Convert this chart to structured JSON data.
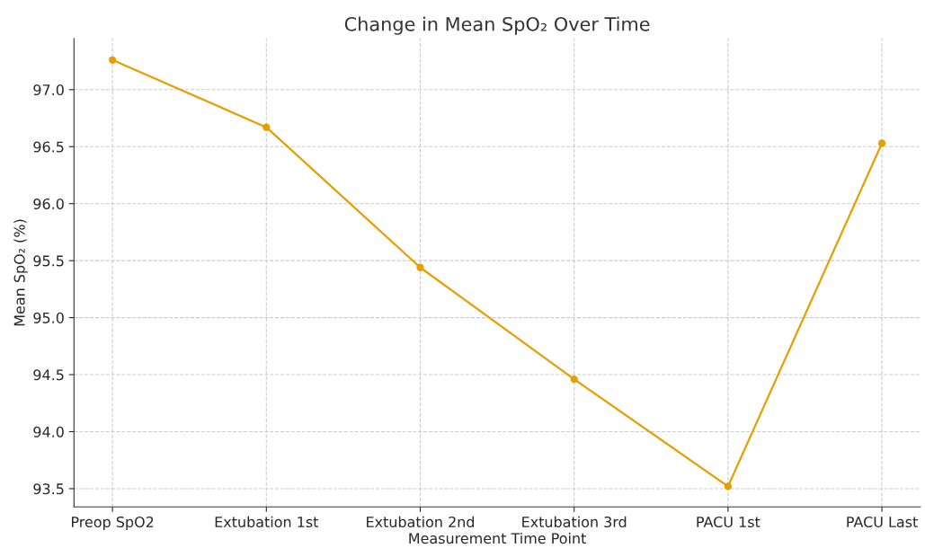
{
  "chart_data": {
    "type": "line",
    "title": "Change in Mean SpO₂ Over Time",
    "xlabel": "Measurement Time Point",
    "ylabel": "Mean SpO₂ (%)",
    "categories": [
      "Preop SpO2",
      "Extubation 1st",
      "Extubation 2nd",
      "Extubation 3rd",
      "PACU 1st",
      "PACU Last"
    ],
    "series": [
      {
        "color": "#e69f00",
        "values": [
          97.26,
          96.67,
          95.44,
          94.46,
          93.52,
          96.53
        ]
      }
    ],
    "ylim": [
      93.34,
      97.45
    ],
    "yticks": [
      {
        "value": 93.5,
        "label": "93.5"
      },
      {
        "value": 94.0,
        "label": "94.0"
      },
      {
        "value": 94.5,
        "label": "94.5"
      },
      {
        "value": 95.0,
        "label": "95.0"
      },
      {
        "value": 95.5,
        "label": "95.5"
      },
      {
        "value": 96.0,
        "label": "96.0"
      },
      {
        "value": 96.5,
        "label": "96.5"
      },
      {
        "value": 97.0,
        "label": "97.0"
      }
    ],
    "grid": true,
    "marker": "circle",
    "line_style": "solid",
    "legend": false
  }
}
